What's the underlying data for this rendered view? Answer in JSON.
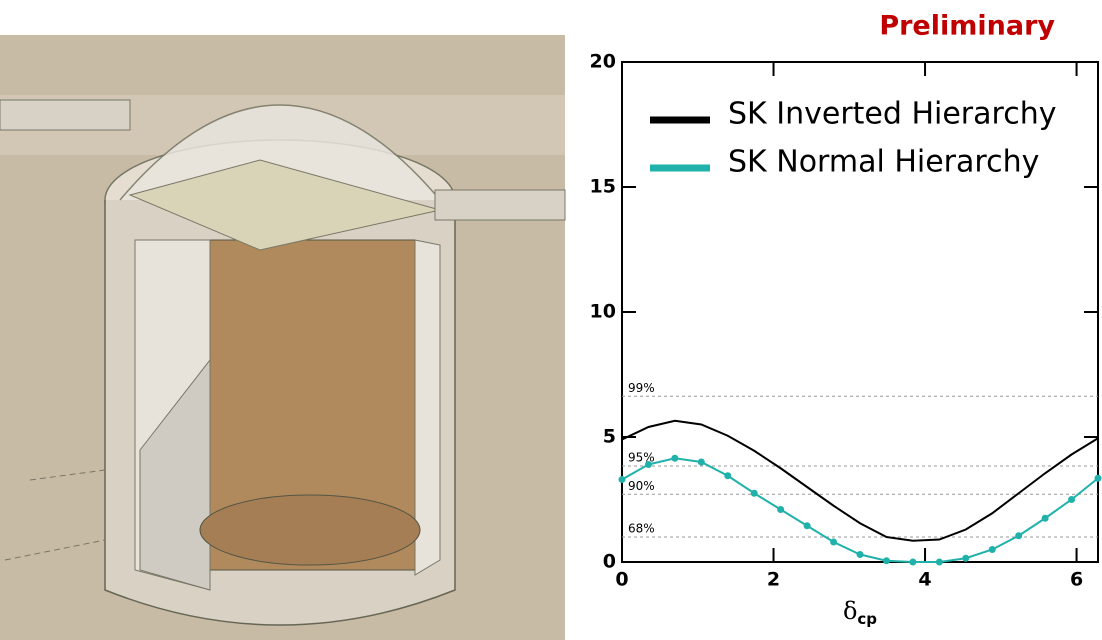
{
  "chart_data": {
    "type": "line",
    "annotation": "Preliminary",
    "x_label": "δ",
    "x_label_sub": "cp",
    "x": [
      0,
      0.349,
      0.698,
      1.047,
      1.396,
      1.745,
      2.094,
      2.443,
      2.793,
      3.142,
      3.491,
      3.84,
      4.189,
      4.538,
      4.887,
      5.236,
      5.585,
      5.934,
      6.283
    ],
    "series": [
      {
        "name": "SK Inverted Hierarchy",
        "color": "#000000",
        "markers": false,
        "values": [
          4.9,
          5.4,
          5.65,
          5.5,
          5.05,
          4.45,
          3.75,
          3.0,
          2.25,
          1.55,
          1.0,
          0.85,
          0.9,
          1.3,
          1.95,
          2.75,
          3.55,
          4.3,
          4.95
        ]
      },
      {
        "name": "SK Normal Hierarchy",
        "color": "#20b2aa",
        "markers": true,
        "values": [
          3.3,
          3.9,
          4.15,
          4.0,
          3.45,
          2.75,
          2.1,
          1.45,
          0.8,
          0.3,
          0.05,
          0,
          0,
          0.15,
          0.5,
          1.05,
          1.75,
          2.5,
          3.35
        ]
      }
    ],
    "reference_lines": [
      {
        "value": 6.63,
        "label": "99%"
      },
      {
        "value": 3.84,
        "label": "95%"
      },
      {
        "value": 2.71,
        "label": "90%"
      },
      {
        "value": 1.0,
        "label": "68%"
      }
    ],
    "xlim": [
      0,
      6.283
    ],
    "ylim": [
      0,
      20
    ],
    "xticks": [
      0,
      2,
      4,
      6
    ],
    "yticks": [
      0,
      5,
      10,
      15,
      20
    ],
    "legend": "upper left"
  }
}
